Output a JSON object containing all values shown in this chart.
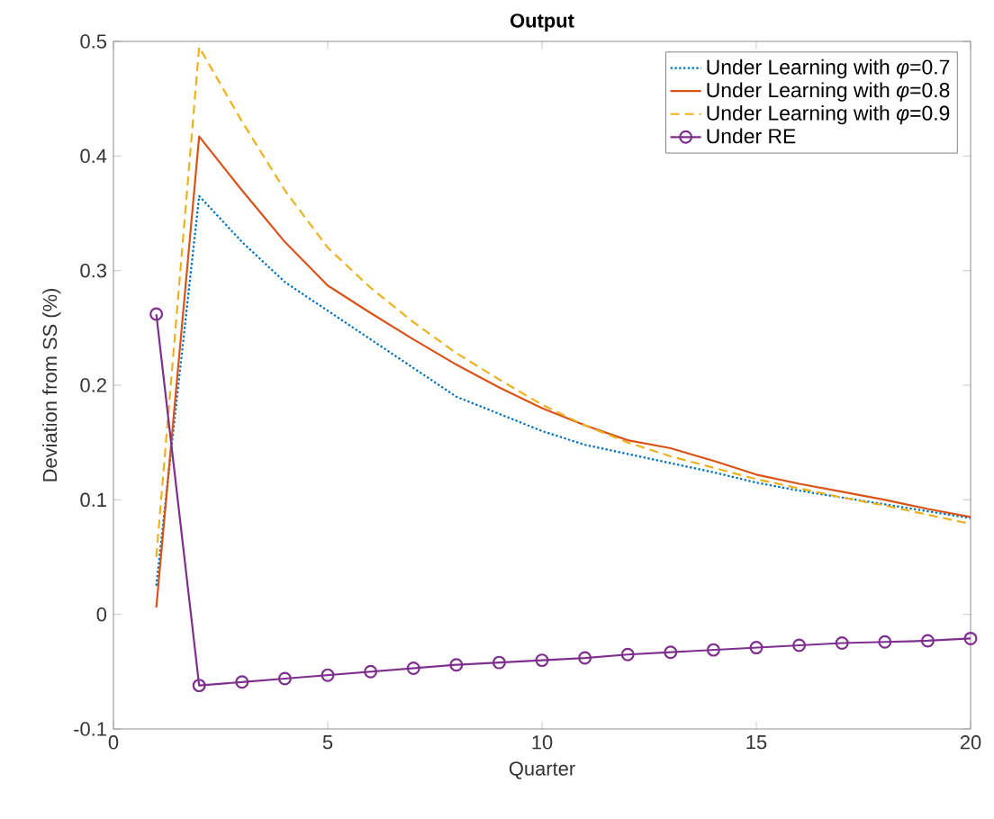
{
  "chart_data": {
    "type": "line",
    "title": "Output",
    "xlabel": "Quarter",
    "ylabel": "Deviation from SS (%)",
    "x": [
      1,
      2,
      3,
      4,
      5,
      6,
      7,
      8,
      9,
      10,
      11,
      12,
      13,
      14,
      15,
      16,
      17,
      18,
      19,
      20
    ],
    "xlim": [
      0,
      20
    ],
    "xticks": [
      0,
      5,
      10,
      15,
      20
    ],
    "ylim": [
      -0.1,
      0.5
    ],
    "yticks": [
      -0.1,
      0,
      0.1,
      0.2,
      0.3,
      0.4,
      0.5
    ],
    "legend": "top right",
    "series": [
      {
        "name": "Under Learning with *φ*=0.7",
        "color": "#0072bd",
        "line_style": "dotted",
        "values": [
          0.025,
          0.365,
          0.325,
          0.29,
          0.265,
          0.24,
          0.215,
          0.19,
          0.175,
          0.16,
          0.148,
          0.14,
          0.132,
          0.124,
          0.115,
          0.108,
          0.102,
          0.096,
          0.09,
          0.084
        ]
      },
      {
        "name": "Under Learning with *φ*=0.8",
        "color": "#d95319",
        "line_style": "solid",
        "values": [
          0.006,
          0.417,
          0.37,
          0.325,
          0.287,
          0.263,
          0.24,
          0.218,
          0.198,
          0.18,
          0.165,
          0.152,
          0.145,
          0.134,
          0.122,
          0.114,
          0.107,
          0.1,
          0.092,
          0.085
        ]
      },
      {
        "name": "Under Learning with *φ*=0.9",
        "color": "#edb120",
        "line_style": "dashed",
        "values": [
          0.05,
          0.495,
          0.43,
          0.37,
          0.32,
          0.285,
          0.255,
          0.228,
          0.205,
          0.183,
          0.165,
          0.15,
          0.138,
          0.128,
          0.118,
          0.11,
          0.102,
          0.095,
          0.087,
          0.079
        ]
      },
      {
        "name": "Under RE",
        "color": "#7e2f8e",
        "line_style": "solid",
        "marker": "circle",
        "values": [
          0.262,
          -0.062,
          -0.059,
          -0.056,
          -0.053,
          -0.05,
          -0.047,
          -0.044,
          -0.042,
          -0.04,
          -0.038,
          -0.035,
          -0.033,
          -0.031,
          -0.029,
          -0.027,
          -0.025,
          -0.024,
          -0.023,
          -0.021
        ]
      }
    ]
  }
}
